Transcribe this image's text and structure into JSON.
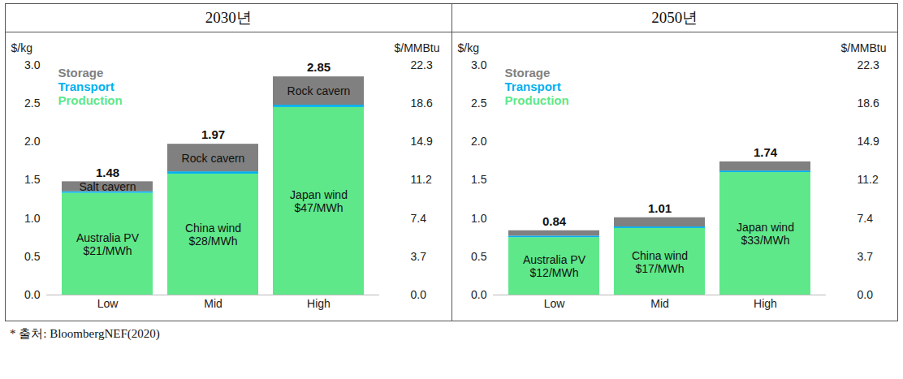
{
  "chart_data": [
    {
      "type": "bar",
      "title": "2030년",
      "stacked": true,
      "legend": "top-left",
      "categories": [
        "Low",
        "Mid",
        "High"
      ],
      "series": [
        {
          "name": "Production",
          "color": "#5ee88a",
          "values": [
            1.33,
            1.58,
            2.45
          ],
          "labels": [
            "Australia PV\n$21/MWh",
            "China wind\n$28/MWh",
            "Japan wind\n$47/MWh"
          ]
        },
        {
          "name": "Transport",
          "color": "#00b0f0",
          "values": [
            0.02,
            0.03,
            0.03
          ]
        },
        {
          "name": "Storage",
          "color": "#808080",
          "values": [
            0.13,
            0.36,
            0.37
          ],
          "labels": [
            "Salt cavern",
            "Rock cavern",
            "Rock cavern"
          ]
        }
      ],
      "totals": [
        1.48,
        1.97,
        2.85
      ],
      "y_label": "$/kg",
      "ylim": [
        0,
        3.0
      ],
      "yticks": [
        {
          "value": 0,
          "label": "0.0"
        },
        0.5,
        {
          "value": 1,
          "label": "1.0"
        },
        1.5,
        {
          "value": 2,
          "label": "2.0"
        },
        2.5,
        {
          "value": 3,
          "label": "3.0"
        }
      ],
      "y2_label": "$/MMBtu",
      "y2lim": [
        0,
        22.3
      ],
      "y2ticks": [
        {
          "value": 0,
          "label": "0.0"
        },
        3.7,
        7.4,
        11.2,
        14.9,
        18.6,
        22.3
      ]
    },
    {
      "type": "bar",
      "title": "2050년",
      "stacked": true,
      "legend": "top-left",
      "categories": [
        "Low",
        "Mid",
        "High"
      ],
      "series": [
        {
          "name": "Production",
          "color": "#5ee88a",
          "values": [
            0.75,
            0.87,
            1.6
          ],
          "labels": [
            "Australia PV\n$12/MWh",
            "China wind\n$17/MWh",
            "Japan wind\n$33/MWh"
          ]
        },
        {
          "name": "Transport",
          "color": "#00b0f0",
          "values": [
            0.02,
            0.02,
            0.02
          ]
        },
        {
          "name": "Storage",
          "color": "#808080",
          "values": [
            0.07,
            0.12,
            0.12
          ]
        }
      ],
      "totals": [
        0.84,
        1.01,
        1.74
      ],
      "y_label": "$/kg",
      "ylim": [
        0,
        3.0
      ],
      "yticks": [
        {
          "value": 0,
          "label": "0.0"
        },
        0.5,
        {
          "value": 1,
          "label": "1.0"
        },
        1.5,
        {
          "value": 2,
          "label": "2.0"
        },
        2.5,
        {
          "value": 3,
          "label": "3.0"
        }
      ],
      "y2_label": "$/MMBtu",
      "y2lim": [
        0,
        22.3
      ],
      "y2ticks": [
        {
          "value": 0,
          "label": "0.0"
        },
        3.7,
        7.4,
        11.2,
        14.9,
        18.6,
        22.3
      ]
    }
  ],
  "caption": "* 출처: BloombergNEF(2020)"
}
